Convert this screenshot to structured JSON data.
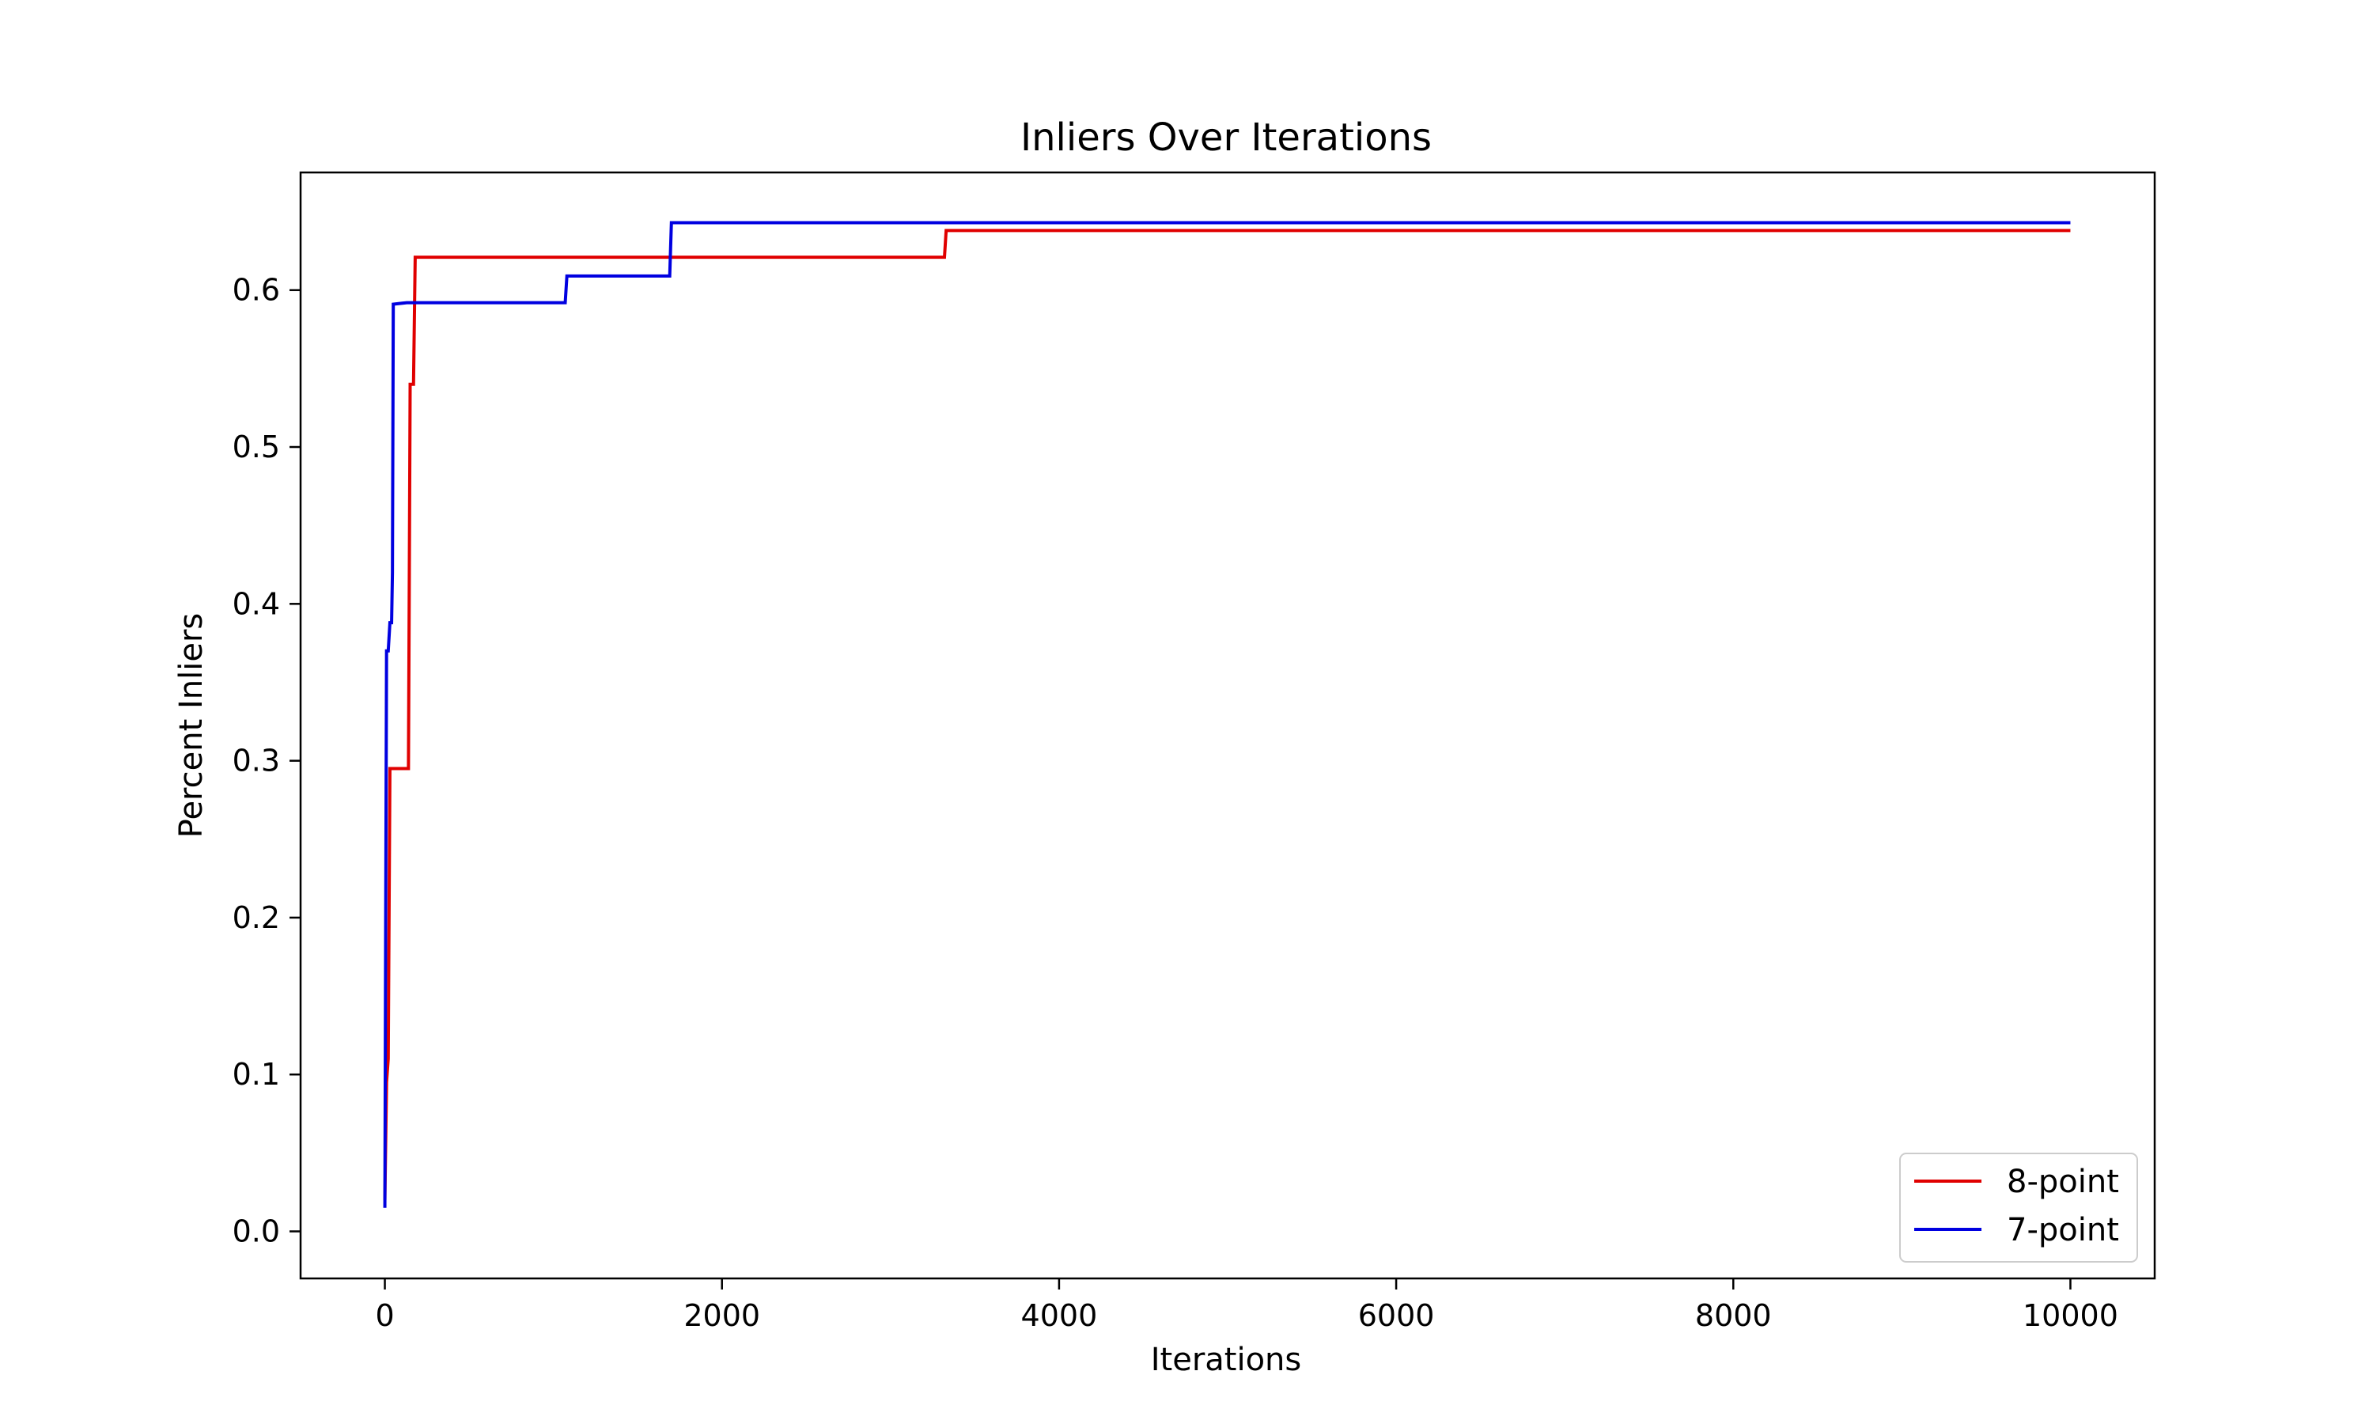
{
  "chart_data": {
    "type": "line",
    "title": "Inliers Over Iterations",
    "xlabel": "Iterations",
    "ylabel": "Percent Inliers",
    "xlim": [
      -500,
      10500
    ],
    "ylim": [
      -0.03,
      0.675
    ],
    "xticks": [
      0,
      2000,
      4000,
      6000,
      8000,
      10000
    ],
    "xtick_labels": [
      "0",
      "2000",
      "4000",
      "6000",
      "8000",
      "10000"
    ],
    "yticks": [
      0.0,
      0.1,
      0.2,
      0.3,
      0.4,
      0.5,
      0.6
    ],
    "ytick_labels": [
      "0.0",
      "0.1",
      "0.2",
      "0.3",
      "0.4",
      "0.5",
      "0.6"
    ],
    "grid": false,
    "legend_position": "lower right",
    "series": [
      {
        "name": "8-point",
        "color": "#e00000",
        "x": [
          0,
          10,
          20,
          30,
          40,
          140,
          150,
          170,
          180,
          3320,
          3330,
          10000
        ],
        "y": [
          0.02,
          0.095,
          0.11,
          0.295,
          0.295,
          0.295,
          0.54,
          0.54,
          0.621,
          0.621,
          0.638,
          0.638
        ]
      },
      {
        "name": "7-point",
        "color": "#0000e0",
        "x": [
          0,
          5,
          10,
          20,
          30,
          40,
          45,
          50,
          130,
          1070,
          1080,
          1690,
          1700,
          10000
        ],
        "y": [
          0.015,
          0.2,
          0.37,
          0.37,
          0.388,
          0.388,
          0.42,
          0.591,
          0.592,
          0.592,
          0.609,
          0.609,
          0.643,
          0.643
        ]
      }
    ]
  }
}
